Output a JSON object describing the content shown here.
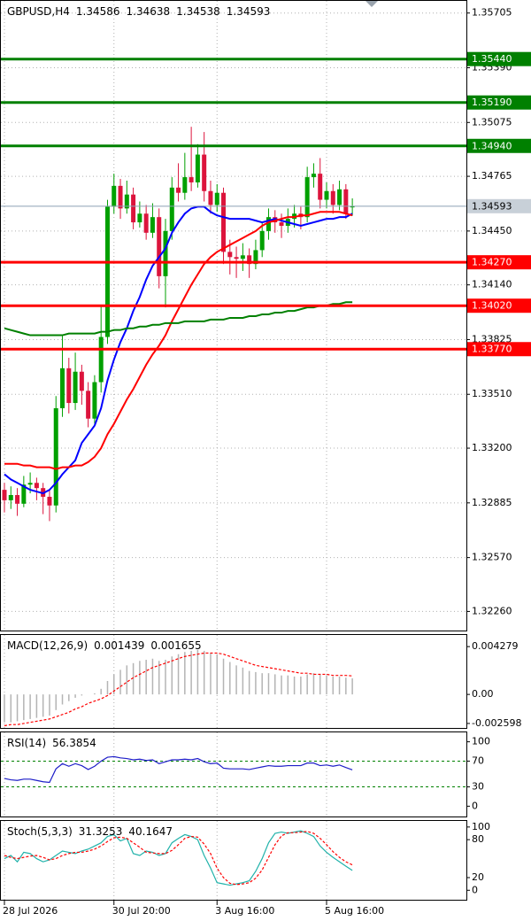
{
  "chart_data": [
    {
      "type": "candlestick",
      "title": "GBPUSD,H4",
      "categories": [
        "28 Jul 2026",
        null,
        null,
        null,
        null,
        null,
        null,
        null,
        null,
        null,
        null,
        null,
        null,
        null,
        null,
        null,
        null,
        "30 Jul 20:00",
        null,
        null,
        null,
        null,
        null,
        null,
        null,
        null,
        null,
        null,
        null,
        null,
        null,
        null,
        null,
        "3 Aug 16:00",
        null,
        null,
        null,
        null,
        null,
        null,
        null,
        null,
        null,
        null,
        null,
        null,
        null,
        null,
        null,
        null,
        "5 Aug 16:00",
        null,
        null,
        null,
        null
      ],
      "open": [
        1.3296,
        1.329,
        1.3293,
        1.3288,
        1.3299,
        1.33,
        1.3297,
        1.3292,
        1.3287,
        1.3343,
        1.3366,
        1.3346,
        1.3364,
        1.3353,
        1.3337,
        1.3358,
        1.3384,
        1.3459,
        1.3471,
        1.3458,
        1.3466,
        1.345,
        1.3455,
        1.3444,
        1.3453,
        1.3419,
        1.3445,
        1.347,
        1.3467,
        1.3476,
        1.3473,
        1.3489,
        1.3468,
        1.346,
        1.3467,
        1.3433,
        1.343,
        1.3429,
        1.3431,
        1.3426,
        1.3434,
        1.3445,
        1.3453,
        1.345,
        1.3448,
        1.3452,
        1.3455,
        1.3453,
        1.3476,
        1.3478,
        1.3463,
        1.3468,
        1.346,
        1.3469,
        1.34586
      ],
      "high": [
        1.33,
        1.3298,
        1.3297,
        1.3304,
        1.3306,
        1.3303,
        1.33,
        1.3296,
        1.335,
        1.3385,
        1.3372,
        1.3375,
        1.3368,
        1.3358,
        1.3362,
        1.3402,
        1.3463,
        1.3478,
        1.3475,
        1.3474,
        1.347,
        1.3462,
        1.346,
        1.3461,
        1.3458,
        1.3452,
        1.3476,
        1.3484,
        1.349,
        1.3505,
        1.3495,
        1.3502,
        1.3474,
        1.3472,
        1.347,
        1.344,
        1.3436,
        1.3438,
        1.3435,
        1.344,
        1.345,
        1.3458,
        1.3457,
        1.3455,
        1.3458,
        1.346,
        1.3459,
        1.3482,
        1.3484,
        1.3487,
        1.3473,
        1.3472,
        1.3474,
        1.3472,
        1.34638
      ],
      "low": [
        1.3283,
        1.3285,
        1.3281,
        1.3286,
        1.3294,
        1.329,
        1.3282,
        1.3278,
        1.3283,
        1.3338,
        1.334,
        1.3342,
        1.3345,
        1.3332,
        1.3334,
        1.3352,
        1.338,
        1.3455,
        1.3452,
        1.3455,
        1.3446,
        1.3447,
        1.344,
        1.3441,
        1.3412,
        1.3401,
        1.344,
        1.3462,
        1.3463,
        1.3468,
        1.347,
        1.3462,
        1.3455,
        1.3456,
        1.3426,
        1.342,
        1.3418,
        1.3422,
        1.3418,
        1.3423,
        1.343,
        1.344,
        1.3444,
        1.3441,
        1.3444,
        1.3447,
        1.3446,
        1.345,
        1.347,
        1.3458,
        1.3458,
        1.3455,
        1.3457,
        1.3452,
        1.34538
      ],
      "close": [
        1.329,
        1.3293,
        1.3288,
        1.3299,
        1.33,
        1.3297,
        1.3292,
        1.3287,
        1.3343,
        1.3366,
        1.3346,
        1.3364,
        1.3353,
        1.3337,
        1.3358,
        1.3384,
        1.3459,
        1.3471,
        1.3458,
        1.3466,
        1.345,
        1.3455,
        1.3444,
        1.3453,
        1.3419,
        1.3445,
        1.347,
        1.3467,
        1.3476,
        1.3473,
        1.3489,
        1.3468,
        1.346,
        1.3467,
        1.3433,
        1.343,
        1.3429,
        1.3431,
        1.3426,
        1.3434,
        1.3445,
        1.3453,
        1.345,
        1.3448,
        1.3452,
        1.3455,
        1.3453,
        1.3476,
        1.3478,
        1.3463,
        1.3468,
        1.346,
        1.3469,
        1.3455,
        1.34593
      ],
      "up_color": "#00a000",
      "down_color": "#dc143c",
      "series": [
        {
          "color": "#0000ff",
          "values": [
            1.3305,
            1.3302,
            1.33,
            1.3298,
            1.3296,
            1.3295,
            1.3294,
            1.3296,
            1.33,
            1.3305,
            1.3309,
            1.3313,
            1.3323,
            1.3328,
            1.3333,
            1.3343,
            1.3359,
            1.3371,
            1.3381,
            1.3389,
            1.3399,
            1.3407,
            1.3417,
            1.3425,
            1.343,
            1.3435,
            1.3444,
            1.345,
            1.3455,
            1.3458,
            1.3459,
            1.3459,
            1.3456,
            1.3454,
            1.3453,
            1.3452,
            1.3452,
            1.3452,
            1.3452,
            1.3451,
            1.345,
            1.3451,
            1.3452,
            1.3451,
            1.345,
            1.3449,
            1.3448,
            1.3449,
            1.345,
            1.3451,
            1.3452,
            1.3452,
            1.3453,
            1.3453,
            1.3455
          ]
        },
        {
          "color": "#ff0000",
          "values": [
            1.3311,
            1.3311,
            1.3311,
            1.331,
            1.331,
            1.3309,
            1.3309,
            1.3309,
            1.3308,
            1.3309,
            1.3309,
            1.331,
            1.331,
            1.3312,
            1.3315,
            1.332,
            1.3328,
            1.3334,
            1.3341,
            1.3348,
            1.3354,
            1.3361,
            1.3368,
            1.3374,
            1.3379,
            1.3385,
            1.3393,
            1.34,
            1.3407,
            1.3414,
            1.342,
            1.3426,
            1.343,
            1.3433,
            1.3435,
            1.3437,
            1.3439,
            1.3441,
            1.3443,
            1.3445,
            1.3448,
            1.345,
            1.3451,
            1.3452,
            1.3453,
            1.3453,
            1.3454,
            1.3454,
            1.3455,
            1.3456,
            1.3456,
            1.3456,
            1.3456,
            1.3455,
            1.3454
          ]
        },
        {
          "color": "#008000",
          "values": [
            1.3389,
            1.3388,
            1.3387,
            1.3386,
            1.3385,
            1.3385,
            1.3385,
            1.3385,
            1.3385,
            1.3385,
            1.3386,
            1.3386,
            1.3386,
            1.3386,
            1.3386,
            1.3387,
            1.3387,
            1.3388,
            1.3388,
            1.3389,
            1.3389,
            1.339,
            1.339,
            1.3391,
            1.3391,
            1.3392,
            1.3392,
            1.3392,
            1.3393,
            1.3393,
            1.3393,
            1.3393,
            1.3394,
            1.3394,
            1.3394,
            1.3395,
            1.3395,
            1.3395,
            1.3396,
            1.3396,
            1.3397,
            1.3397,
            1.3398,
            1.3398,
            1.3399,
            1.3399,
            1.34,
            1.3401,
            1.3401,
            1.3402,
            1.3402,
            1.3403,
            1.3403,
            1.3404,
            1.3404
          ]
        }
      ],
      "levels": [
        {
          "value": 1.3544,
          "label": "1.35440",
          "color": "#008000"
        },
        {
          "value": 1.3519,
          "label": "1.35190",
          "color": "#008000"
        },
        {
          "value": 1.3494,
          "label": "1.34940",
          "color": "#008000"
        },
        {
          "value": 1.3427,
          "label": "1.34270",
          "color": "#ff0000"
        },
        {
          "value": 1.3402,
          "label": "1.34020",
          "color": "#ff0000"
        },
        {
          "value": 1.3377,
          "label": "1.33770",
          "color": "#ff0000"
        }
      ],
      "ylim": [
        1.3215,
        1.3578
      ],
      "yticks": [
        1.35705,
        {
          "value": 1.3539,
          "label": "1.35390"
        },
        1.35075,
        1.34765,
        {
          "value": 1.3445,
          "label": "1.34450"
        },
        {
          "value": 1.3414,
          "label": "1.34140"
        },
        1.33825,
        {
          "value": 1.3351,
          "label": "1.33510"
        },
        {
          "value": 1.332,
          "label": "1.33200"
        },
        1.32885,
        {
          "value": 1.3257,
          "label": "1.32570"
        },
        {
          "value": 1.3226,
          "label": "1.32260"
        }
      ],
      "grid": true
    },
    {
      "type": "macd",
      "title": "MACD(12,26,9)",
      "series": [
        {
          "style": "bar",
          "color": "#b4b4b4",
          "values": [
            -0.0025,
            -0.0025,
            -0.0024,
            -0.0023,
            -0.0022,
            -0.0021,
            -0.002,
            -0.0019,
            -0.0014,
            -0.0009,
            -0.0006,
            -0.0003,
            -0.0001,
            0,
            0.0001,
            0.0005,
            0.0012,
            0.0018,
            0.0022,
            0.0026,
            0.0028,
            0.003,
            0.0031,
            0.0032,
            0.003,
            0.0031,
            0.0034,
            0.0036,
            0.0038,
            0.0039,
            0.004,
            0.0039,
            0.0037,
            0.0036,
            0.0032,
            0.0029,
            0.0026,
            0.0024,
            0.0021,
            0.002,
            0.0019,
            0.0019,
            0.0018,
            0.0017,
            0.0017,
            0.0016,
            0.0016,
            0.0018,
            0.0019,
            0.0018,
            0.0017,
            0.0016,
            0.0016,
            0.0015,
            0.001439
          ]
        },
        {
          "style": "line",
          "dashed": true,
          "color": "#ff0000",
          "values": [
            -0.0028,
            -0.0027,
            -0.0027,
            -0.0026,
            -0.0025,
            -0.0024,
            -0.0023,
            -0.0022,
            -0.002,
            -0.0018,
            -0.0016,
            -0.0013,
            -0.0011,
            -0.0008,
            -0.0006,
            -0.0004,
            -0.0001,
            0.0003,
            0.0007,
            0.0011,
            0.0015,
            0.0018,
            0.0021,
            0.0024,
            0.0026,
            0.0028,
            0.003,
            0.0032,
            0.0034,
            0.0035,
            0.0036,
            0.0037,
            0.0037,
            0.0037,
            0.0036,
            0.0034,
            0.0032,
            0.003,
            0.0028,
            0.0026,
            0.0025,
            0.0024,
            0.0023,
            0.0022,
            0.0021,
            0.002,
            0.0019,
            0.0019,
            0.0018,
            0.0018,
            0.0018,
            0.0017,
            0.0017,
            0.0017,
            0.001655
          ]
        }
      ],
      "ylim": [
        -0.003,
        0.0054
      ],
      "yticks": [
        0.004279,
        {
          "value": 0,
          "label": "0.00"
        },
        -0.002598
      ]
    },
    {
      "type": "line",
      "title": "RSI(14)",
      "series": [
        {
          "style": "line",
          "color": "#1e1ec8",
          "values": [
            43,
            41,
            40,
            42,
            42,
            40,
            38,
            37,
            58,
            66,
            62,
            66,
            63,
            57,
            62,
            70,
            76,
            77,
            75,
            74,
            72,
            73,
            71,
            72,
            66,
            69,
            72,
            72,
            73,
            72,
            74,
            69,
            66,
            67,
            59,
            58,
            58,
            58,
            57,
            59,
            61,
            63,
            62,
            62,
            63,
            63,
            63,
            67,
            67,
            63,
            64,
            62,
            64,
            60,
            56.3854
          ]
        }
      ],
      "levels": [
        70,
        30
      ],
      "level_color": "#008000",
      "ylim": [
        -16,
        116
      ],
      "yticks": [
        100,
        70,
        30,
        0
      ]
    },
    {
      "type": "line",
      "title": "Stoch(5,3,3)",
      "series": [
        {
          "style": "line",
          "color": "#20b2aa",
          "values": [
            50,
            55,
            45,
            60,
            58,
            50,
            45,
            48,
            55,
            62,
            60,
            58,
            62,
            65,
            70,
            75,
            85,
            88,
            78,
            82,
            58,
            55,
            62,
            60,
            55,
            58,
            75,
            82,
            88,
            85,
            80,
            55,
            35,
            12,
            10,
            8,
            10,
            12,
            15,
            30,
            50,
            75,
            90,
            92,
            90,
            92,
            94,
            90,
            85,
            70,
            60,
            52,
            45,
            38,
            31.3253
          ]
        },
        {
          "style": "line",
          "dashed": true,
          "color": "#ff0000",
          "values": [
            55,
            52,
            50,
            52,
            54,
            55,
            52,
            48,
            50,
            55,
            58,
            60,
            60,
            62,
            65,
            70,
            77,
            83,
            84,
            82,
            75,
            68,
            60,
            59,
            58,
            58,
            63,
            72,
            82,
            85,
            84,
            73,
            58,
            35,
            20,
            11,
            9,
            10,
            12,
            19,
            32,
            52,
            72,
            86,
            91,
            91,
            92,
            93,
            90,
            82,
            72,
            61,
            52,
            45,
            40.1647
          ]
        }
      ],
      "ylim": [
        -15,
        111
      ],
      "yticks": [
        100,
        80,
        20,
        0
      ]
    }
  ]
}
